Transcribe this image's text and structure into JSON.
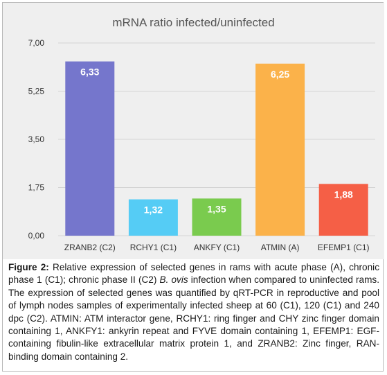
{
  "chart_data": {
    "type": "bar",
    "title": "mRNA ratio infected/uninfected",
    "categories": [
      "ZRANB2 (C2)",
      "RCHY1 (C1)",
      "ANKFY (C1)",
      "ATMIN (A)",
      "EFEMP1 (C1)"
    ],
    "values": [
      6.33,
      1.32,
      1.35,
      6.25,
      1.88
    ],
    "value_labels": [
      "6,33",
      "1,32",
      "1,35",
      "6,25",
      "1,88"
    ],
    "colors": [
      "#7576cc",
      "#55ccf5",
      "#7acb4e",
      "#fbb24a",
      "#f55f46"
    ],
    "ylim": [
      0,
      7
    ],
    "yticks": [
      0,
      1.75,
      3.5,
      5.25,
      7
    ],
    "ytick_labels": [
      "0,00",
      "1,75",
      "3,50",
      "5,25",
      "7,00"
    ],
    "grid": true,
    "xlabel": "",
    "ylabel": ""
  },
  "caption": {
    "label": "Figure 2:",
    "text_1": " Relative expression of selected genes in rams with acute phase (A), chronic phase 1 (C1); chronic phase II (C2) ",
    "species": "B. ovis",
    "text_2": " infection when compared to uninfected rams. The expression of selected genes was quantified by qRT-PCR in reproductive and pool of lymph nodes samples of experimentally infected sheep at 60 (C1), 120 (C1) and 240 dpc (C2). ATMIN: ATM interactor gene, RCHY1: ring finger and CHY zinc finger domain containing 1, ANKFY1: ankyrin repeat and FYVE domain containing 1, EFEMP1: EGF-containing fibulin-like extracellular matrix protein 1, and ZRANB2: Zinc finger, RAN-binding domain containing 2."
  }
}
